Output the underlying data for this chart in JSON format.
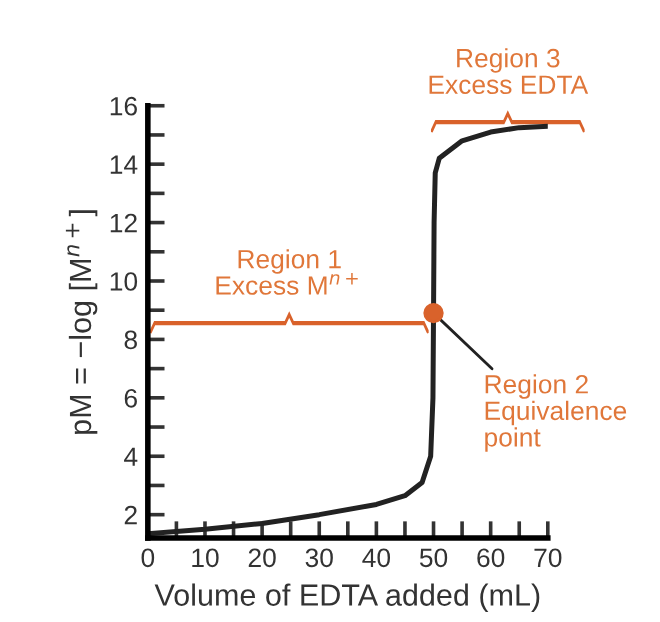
{
  "chart_data": {
    "type": "line",
    "xlabel": "Volume of EDTA added (mL)",
    "ylabel": "pM = −log [M$^{n+}$]",
    "x": [
      0,
      10,
      20,
      30,
      40,
      45,
      48,
      49.5,
      49.9,
      50,
      50.1,
      50.3,
      51,
      55,
      60,
      65,
      70
    ],
    "series": [
      {
        "color": "#222222",
        "values": [
          1.35,
          1.5,
          1.7,
          2.0,
          2.35,
          2.65,
          3.1,
          4.0,
          6.0,
          8.9,
          12.0,
          13.7,
          14.2,
          14.8,
          15.1,
          15.25,
          15.3
        ]
      },
      {
        "type": "scatter",
        "color": "#d9622b",
        "x": [
          50
        ],
        "values": [
          8.9
        ]
      }
    ],
    "annotations": [
      "Region 1\nExcess M$^{n+}$",
      "Region 3\nExcess EDTA",
      {
        "text": "Region 2\nEquivalence\npoint",
        "x": 50,
        "y": 8.9
      }
    ],
    "xlim": [
      0,
      70
    ],
    "ylim": [
      1.2,
      16
    ],
    "xticks": [
      0,
      {
        "value": 5,
        "label": null
      },
      10,
      {
        "value": 15,
        "label": null
      },
      20,
      {
        "value": 25,
        "label": null
      },
      30,
      {
        "value": 35,
        "label": null
      },
      40,
      {
        "value": 45,
        "label": null
      },
      50,
      {
        "value": 55,
        "label": null
      },
      60,
      {
        "value": 65,
        "label": null
      },
      70
    ],
    "yticks": [
      2,
      {
        "value": 3,
        "label": null
      },
      4,
      {
        "value": 5,
        "label": null
      },
      6,
      {
        "value": 7,
        "label": null
      },
      8,
      {
        "value": 9,
        "label": null
      },
      10,
      {
        "value": 11,
        "label": null
      },
      12,
      {
        "value": 13,
        "label": null
      },
      14,
      {
        "value": 15,
        "label": null
      },
      16
    ],
    "grid": false,
    "legend": false,
    "line_style": "solid"
  }
}
